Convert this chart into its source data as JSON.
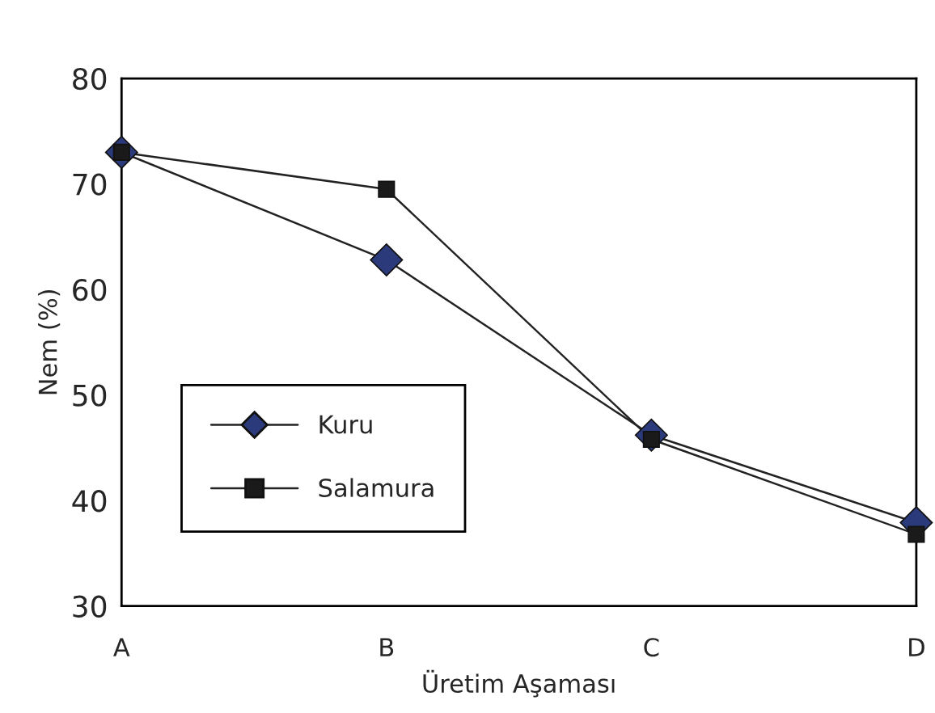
{
  "chart_data": {
    "type": "line",
    "xlabel": "Üretim Aşaması",
    "ylabel": "Nem (%)",
    "categories": [
      "A",
      "B",
      "C",
      "D"
    ],
    "series": [
      {
        "name": "Kuru",
        "color": "#2b3a7a",
        "marker": "diamond",
        "values": [
          73,
          62.8,
          46.2,
          37.9
        ]
      },
      {
        "name": "Salamura",
        "color": "#1a1a1a",
        "marker": "square",
        "values": [
          73,
          69.5,
          45.8,
          36.8
        ]
      }
    ],
    "ylim": [
      30,
      80
    ],
    "yticks": [
      30,
      40,
      50,
      60,
      70,
      80
    ],
    "grid": false,
    "legend": "left",
    "line_style": "solid"
  }
}
